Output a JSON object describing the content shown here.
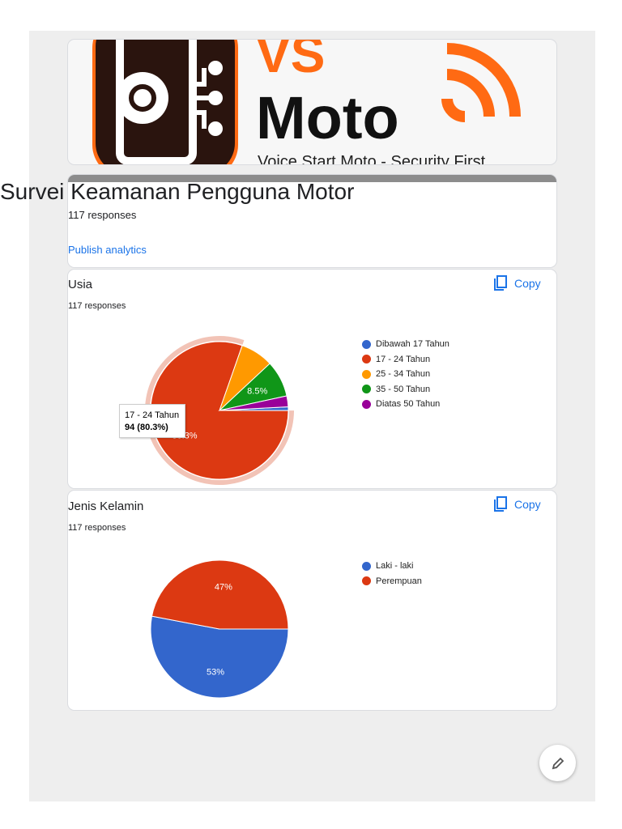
{
  "banner": {
    "logo_text_top": "VS",
    "logo_text_main": "Moto",
    "tagline": "Voice Start Moto - Security First",
    "colors": {
      "orange": "#ff6a13",
      "dark": "#2a140e"
    }
  },
  "form": {
    "title": "Survei Keamanan Pengguna Motor",
    "responses": "117 responses",
    "publish_link": "Publish analytics"
  },
  "questions": [
    {
      "title": "Usia",
      "responses": "117 responses",
      "copy_label": "Copy",
      "copy_icon": "copy-icon",
      "tooltip": {
        "label": "17 - 24 Tahun",
        "value": "94 (80.3%)"
      }
    },
    {
      "title": "Jenis Kelamin",
      "responses": "117 responses",
      "copy_label": "Copy",
      "copy_icon": "copy-icon"
    }
  ],
  "chart_data": [
    {
      "type": "pie",
      "title": "Usia",
      "categories": [
        "Dibawah 17 Tahun",
        "17 - 24 Tahun",
        "25 - 34 Tahun",
        "35 - 50 Tahun",
        "Diatas 50 Tahun"
      ],
      "values": [
        1,
        94,
        9,
        10,
        3
      ],
      "colors": [
        "#3366cc",
        "#dc3912",
        "#ff9900",
        "#109618",
        "#990099"
      ],
      "slice_labels": [
        "",
        "80.3%",
        "",
        "8.5%",
        ""
      ],
      "highlighted": "17 - 24 Tahun",
      "legend": "right"
    },
    {
      "type": "pie",
      "title": "Jenis Kelamin",
      "categories": [
        "Laki - laki",
        "Perempuan"
      ],
      "values": [
        62,
        55
      ],
      "colors": [
        "#3366cc",
        "#dc3912"
      ],
      "slice_labels": [
        "53%",
        "47%"
      ],
      "legend": "right"
    }
  ],
  "fab": {
    "icon": "pencil-icon"
  }
}
